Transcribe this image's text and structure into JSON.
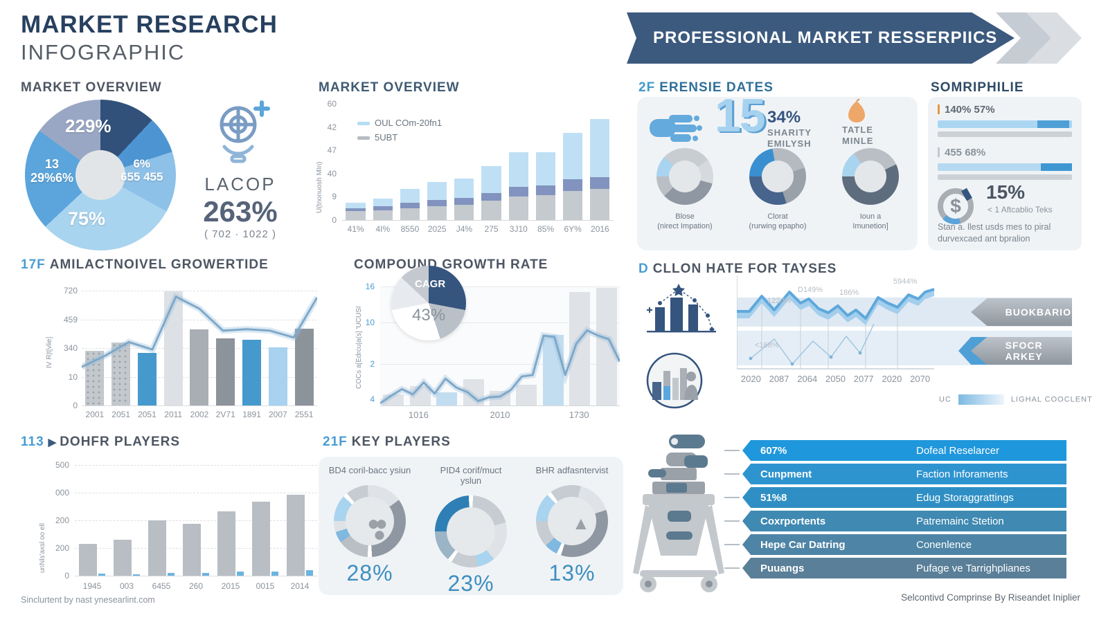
{
  "header": {
    "title": "MARKET RESEARCH",
    "subtitle": "INFOGRAPHIC",
    "banner": "PROFESSIONAL MARKET RESSERPIICS"
  },
  "footer": {
    "left": "Sinclurtent by nast ynesearlint.com",
    "right": "Selcontivd Comprinse By Riseandet Iniplier"
  },
  "colors": {
    "navy": "#31517a",
    "banner": "#3c5a7e",
    "accent_blue": "#4b9cd3",
    "light_blue": "#a9d4ef",
    "mid_blue": "#4d95d2",
    "lavender": "#9aa7c4",
    "bar_gray": "#c3c8cd",
    "dark_gray": "#8d939b",
    "orange": "#eda768"
  },
  "overview_stat": {
    "icon": "lightbulb-target-icon",
    "name": "LACOP",
    "value": "263%",
    "range": "( 702 · 1022 )"
  },
  "ferensie": {
    "heading_num": "2F",
    "heading": "ERENSIE DATES",
    "big_number": "15",
    "stat_value": "34%",
    "stat_lines": [
      "SHARITY",
      "EMILYSH"
    ],
    "tatle_lines": [
      "TATLE",
      "MINLE"
    ],
    "donuts": [
      {
        "label": "Blose",
        "sublabel": "(nirect Impation)",
        "segments": [
          {
            "color": "#a9d4ef",
            "pct": 12
          },
          {
            "color": "#c8cdd2",
            "pct": 28
          },
          {
            "color": "#d6dade",
            "pct": 14
          },
          {
            "color": "#8f98a2",
            "pct": 34
          },
          {
            "color": "#b9bfc5",
            "pct": 12
          }
        ]
      },
      {
        "label": "Clorat",
        "sublabel": "(rurwing epapho)",
        "segments": [
          {
            "color": "#3a8fd0",
            "pct": 22
          },
          {
            "color": "#b4bac0",
            "pct": 23
          },
          {
            "color": "#9aa1a9",
            "pct": 25
          },
          {
            "color": "#46648c",
            "pct": 30
          }
        ]
      },
      {
        "label": "Ioun a",
        "sublabel": "Imunetion]",
        "segments": [
          {
            "color": "#a9d4ef",
            "pct": 15
          },
          {
            "color": "#b9bfc5",
            "pct": 28
          },
          {
            "color": "#5d6d7e",
            "pct": 57
          }
        ]
      }
    ]
  },
  "somriphilie": {
    "heading": "SOMRIPHILIE",
    "bars": [
      {
        "label": "140% 57%",
        "track": "#aad6f2",
        "seg": "#4e9fd6",
        "seg_from": 74,
        "seg_to": 98
      },
      {
        "label": "455 68%",
        "track": "#b5d9f0",
        "seg": "#3f97d2",
        "seg_from": 77,
        "seg_to": 100
      }
    ],
    "pct": "15%",
    "note": "< 1 Aftcablio Teks",
    "desc": "Stan a. llest usds mes to piral durvexcaed ant bpralion"
  },
  "cart_list": {
    "rows": [
      {
        "left": "607%",
        "right": "Dofeal Reselarcer",
        "color": "#1f97dc"
      },
      {
        "left": "Cunpment",
        "right": "Faction Inforaments",
        "color": "#2e94d0"
      },
      {
        "left": "51%8",
        "right": "Edug Storaggrattings",
        "color": "#2f8fc4"
      },
      {
        "left": "Coxrportents",
        "right": "Patremainc Stetion",
        "color": "#3f89b2"
      },
      {
        "left": "Hepe Car Datring",
        "right": "Conenlence",
        "color": "#4e84a5"
      },
      {
        "left": "Puuangs",
        "right": "Pufage ve Tarrighplianes",
        "color": "#5a7f98"
      }
    ]
  },
  "chart_data": [
    {
      "id": "overview_pie",
      "type": "pie",
      "title": "MARKET OVERVIEW",
      "slices": [
        {
          "name": "navy",
          "value": 12,
          "color": "#31517a"
        },
        {
          "name": "mid-blue",
          "value": 8,
          "color": "#4d95d2"
        },
        {
          "name": "light",
          "value": 13,
          "color": "#8ec1e8"
        },
        {
          "name": "pale",
          "value": 30,
          "color": "#a9d4ef"
        },
        {
          "name": "blue",
          "value": 22,
          "color": "#5ba5dc"
        },
        {
          "name": "lavender",
          "value": 15,
          "color": "#9aa7c4"
        }
      ],
      "labels": {
        "top": [
          "229%"
        ],
        "right": [
          "6%",
          "655 455"
        ],
        "bottom": [
          "75%"
        ],
        "left": [
          "13",
          "29%6%"
        ]
      }
    },
    {
      "id": "overview_stacked",
      "type": "bar",
      "title": "MARKET OVERVIEW",
      "ylabel": "U(tnonuosh MIn)",
      "yticks": [
        "60",
        "42",
        "47",
        "40",
        "9",
        "0"
      ],
      "ylim": [
        0,
        60
      ],
      "legend": [
        {
          "label": "OUL COm-20fn1",
          "color": "#b5ddf4"
        },
        {
          "label": "5UBT",
          "color": "#b6bcc2"
        }
      ],
      "categories": [
        "41%",
        "4I%",
        "8550",
        "2025",
        "J4%",
        "275",
        "3J10",
        "85%",
        "6Y%",
        "2016"
      ],
      "series": [
        {
          "name": "base",
          "color": "#c5cacf",
          "values": [
            4.5,
            5,
            6,
            7,
            8,
            10,
            12,
            13,
            15,
            16
          ]
        },
        {
          "name": "mid",
          "color": "#8193be",
          "values": [
            1.5,
            2,
            3,
            3.5,
            3.5,
            4,
            5,
            5,
            6,
            6
          ]
        },
        {
          "name": "top",
          "color": "#bfe0f4",
          "values": [
            3,
            4,
            7,
            9,
            10,
            14,
            18,
            17,
            24,
            30
          ]
        }
      ]
    },
    {
      "id": "growertide",
      "type": "bar-line",
      "title_num": "17F",
      "title": "AMILACTNOIVEL GROWERTIDE",
      "ylabel": "IV R|t[vlie]",
      "yticks": [
        "720",
        "459",
        "340",
        "10",
        "0"
      ],
      "ylim": [
        0,
        760
      ],
      "categories": [
        "2001",
        "2051",
        "2051",
        "2011",
        "2002",
        "2V71",
        "1891",
        "2007",
        "2551"
      ],
      "bars": [
        360,
        415,
        350,
        755,
        505,
        445,
        435,
        385,
        510
      ],
      "bar_colors": [
        "dots",
        "dots",
        "#4699cc",
        "#dde1e5",
        "#a9aeb4",
        "#8d939b",
        "#4699cc",
        "#a8d2ef",
        "#8d939b"
      ],
      "line": [
        255,
        330,
        420,
        370,
        720,
        640,
        495,
        505,
        495,
        450,
        715
      ]
    },
    {
      "id": "compound",
      "type": "bar-line",
      "title": "COMPOUND GROWTH RATE",
      "ylabel": "COCs a[Edrcu|a(s] 'UCUSI",
      "yticks": [
        "16",
        "10",
        "2",
        "4"
      ],
      "ylim": [
        0,
        16
      ],
      "categories": [
        "1016",
        "2010",
        "1730"
      ],
      "bars": [
        1.5,
        2.6,
        1.8,
        3.5,
        2.0,
        2.8,
        9.5,
        15.3,
        15.8
      ],
      "bar_color": "#dfe2e6",
      "bar_highlight_color": "#c3ddf0",
      "bar_highlight": [
        2,
        6
      ],
      "line": [
        0.3,
        1.3,
        2.2,
        1.5,
        3.1,
        1.6,
        3.6,
        2.4,
        1.8,
        0.6,
        1.1,
        1.2,
        2.1,
        3.9,
        4.1,
        9.4,
        9.2,
        4.1,
        8.3,
        10.1,
        9.4,
        8.9,
        5.9
      ],
      "inset": {
        "label": "CAGR",
        "value": "43%"
      }
    },
    {
      "id": "tayses",
      "type": "band-line",
      "title_num": "D",
      "title": "CLLON HATE FOR TAYSES",
      "categories": [
        "2020",
        "2087",
        "2064",
        "2050",
        "2077",
        "2020",
        "2070"
      ],
      "annotations": [
        "122d%",
        "D149%",
        "186%",
        "5944%",
        "<168%",
        "<a 6066%"
      ],
      "band_top": [
        [
          0,
          52
        ],
        [
          18,
          52
        ],
        [
          36,
          30
        ],
        [
          54,
          50
        ],
        [
          76,
          24
        ],
        [
          92,
          40
        ],
        [
          104,
          34
        ],
        [
          118,
          48
        ],
        [
          132,
          54
        ],
        [
          146,
          44
        ],
        [
          160,
          58
        ],
        [
          172,
          50
        ],
        [
          186,
          62
        ],
        [
          204,
          32
        ],
        [
          218,
          40
        ],
        [
          232,
          46
        ],
        [
          248,
          28
        ],
        [
          262,
          34
        ],
        [
          272,
          24
        ],
        [
          285,
          20
        ]
      ],
      "band_thickness": 10,
      "band_color": "#5ea8dc",
      "band_fill": "#9ccbeb",
      "arrows": [
        {
          "label": "BUOKBARIO"
        },
        {
          "label": "SFOCR ARKEY"
        }
      ],
      "legend": {
        "prefix": "UC",
        "label": "LIGHAL COOCLENT"
      }
    },
    {
      "id": "dohfr",
      "type": "bar",
      "title_num": "113",
      "title": "DOHFR PLAYERS",
      "ylabel": "unNls'axsl oo ell",
      "yticks": [
        "500",
        "000",
        "200",
        "200",
        "0"
      ],
      "ylim": [
        0,
        500
      ],
      "categories": [
        "1945",
        "003",
        "6455",
        "260",
        "2015",
        "0015",
        "2014"
      ],
      "series": [
        {
          "name": "gray",
          "color": "#b8bec4",
          "values": [
            145,
            162,
            250,
            235,
            292,
            335,
            365
          ]
        },
        {
          "name": "blue",
          "color": "#6cb4e0",
          "values": [
            8,
            7,
            13,
            13,
            20,
            20,
            26
          ]
        }
      ]
    },
    {
      "id": "key_players",
      "type": "donut-gauges",
      "title_num": "21F",
      "title": "KEY PLAYERS",
      "gauges": [
        {
          "label": "BD4 coril-bacc ysiun",
          "value": "28%",
          "glyph": "dots",
          "segments": [
            {
              "color": "#a9d4ef",
              "pct": 12
            },
            {
              "color": "#ffffff",
              "pct": 2
            },
            {
              "color": "#c6ccd2",
              "pct": 10
            },
            {
              "color": "#dfe2e6",
              "pct": 16
            },
            {
              "color": "#8f98a2",
              "pct": 34
            },
            {
              "color": "#ffffff",
              "pct": 2
            },
            {
              "color": "#b9bfc5",
              "pct": 14
            },
            {
              "color": "#7fb8e0",
              "pct": 5
            },
            {
              "color": "#dfe2e6",
              "pct": 5
            }
          ]
        },
        {
          "label": "PID4 corif/muct yslun",
          "value": "23%",
          "glyph": "",
          "segments": [
            {
              "color": "#2e7fb5",
              "pct": 24
            },
            {
              "color": "#ffffff",
              "pct": 2
            },
            {
              "color": "#c6ccd2",
              "pct": 20
            },
            {
              "color": "#dfe2e6",
              "pct": 18
            },
            {
              "color": "#a9d4ef",
              "pct": 8
            },
            {
              "color": "#c6ccd2",
              "pct": 12
            },
            {
              "color": "#ffffff",
              "pct": 2
            },
            {
              "color": "#9bb4c6",
              "pct": 14
            }
          ]
        },
        {
          "label": "BHR adfasntervist",
          "value": "13%",
          "glyph": "triangle",
          "segments": [
            {
              "color": "#a9d4ef",
              "pct": 13
            },
            {
              "color": "#ffffff",
              "pct": 2
            },
            {
              "color": "#c6ccd2",
              "pct": 14
            },
            {
              "color": "#dfe2e6",
              "pct": 16
            },
            {
              "color": "#8f98a2",
              "pct": 35
            },
            {
              "color": "#ffffff",
              "pct": 2
            },
            {
              "color": "#7fb8e0",
              "pct": 6
            },
            {
              "color": "#c6ccd2",
              "pct": 12
            }
          ]
        }
      ]
    }
  ]
}
